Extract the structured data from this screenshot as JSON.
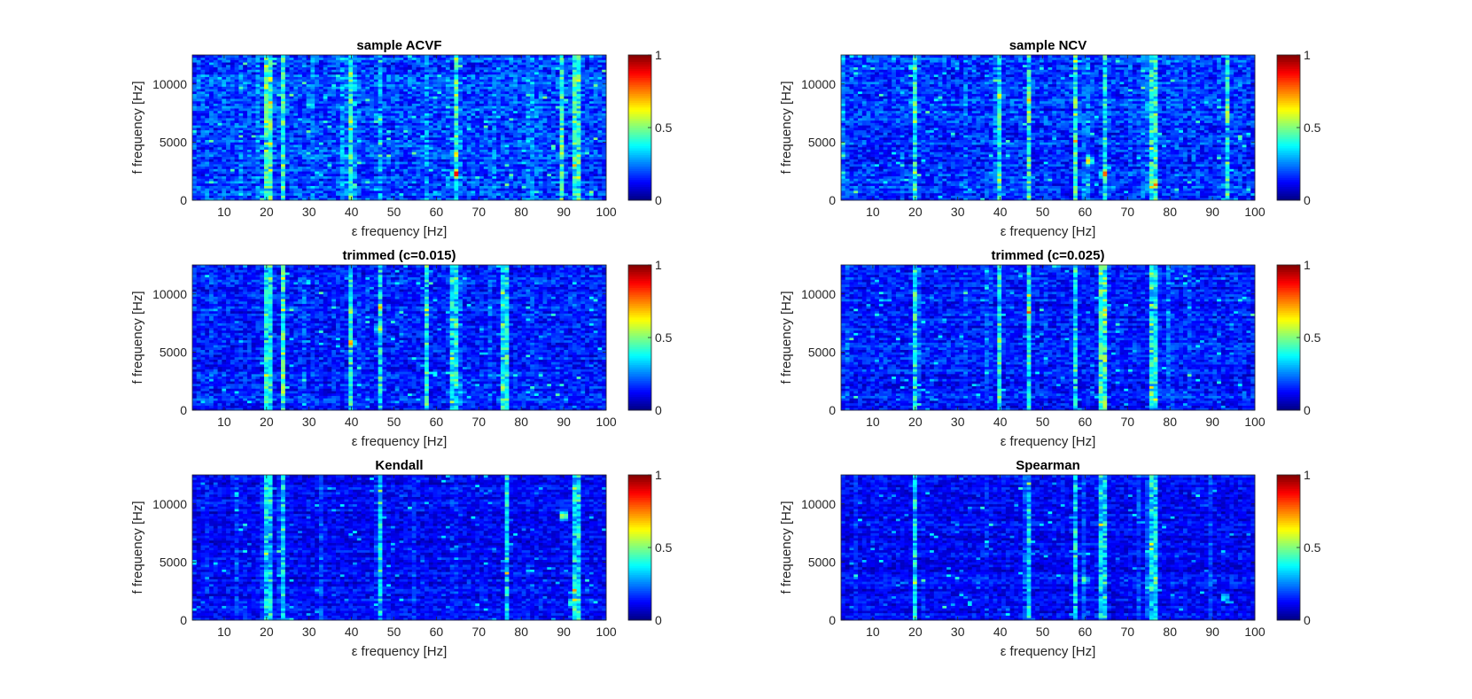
{
  "chart_data": [
    {
      "type": "heatmap",
      "title": "sample ACVF",
      "xlabel": "ε frequency [Hz]",
      "ylabel": "f frequency [Hz]",
      "xlim": [
        2.5,
        100
      ],
      "ylim": [
        0,
        12500
      ],
      "xticks": [
        10,
        20,
        30,
        40,
        50,
        60,
        70,
        80,
        90,
        100
      ],
      "yticks": [
        0,
        5000,
        10000
      ],
      "clim": [
        0,
        1
      ],
      "cticks": [
        0,
        0.5,
        1
      ],
      "colormap": "jet",
      "grid": false,
      "bright_columns_hz": [
        20.5,
        24,
        40,
        64.5,
        89.5,
        93
      ],
      "base_level": 0.22,
      "peaks": [
        {
          "x": 64.5,
          "y": 2300,
          "v": 0.95
        },
        {
          "x": 40,
          "y": 6800,
          "v": 0.62
        },
        {
          "x": 64.5,
          "y": 4000,
          "v": 0.7
        }
      ]
    },
    {
      "type": "heatmap",
      "title": "sample NCV",
      "xlabel": "ε frequency [Hz]",
      "ylabel": "f frequency [Hz]",
      "xlim": [
        2.5,
        100
      ],
      "ylim": [
        0,
        12500
      ],
      "xticks": [
        10,
        20,
        30,
        40,
        50,
        60,
        70,
        80,
        90,
        100
      ],
      "yticks": [
        0,
        5000,
        10000
      ],
      "clim": [
        0,
        1
      ],
      "cticks": [
        0,
        0.5,
        1
      ],
      "colormap": "jet",
      "grid": false,
      "bright_columns_hz": [
        20,
        40,
        47,
        57.5,
        64.5,
        76,
        93.5
      ],
      "base_level": 0.2,
      "peaks": [
        {
          "x": 64.5,
          "y": 2300,
          "v": 0.85
        },
        {
          "x": 61,
          "y": 3400,
          "v": 0.75
        },
        {
          "x": 40,
          "y": 9000,
          "v": 0.65
        }
      ]
    },
    {
      "type": "heatmap",
      "title": "trimmed (c=0.015)",
      "xlabel": "ε frequency [Hz]",
      "ylabel": "f frequency [Hz]",
      "xlim": [
        2.5,
        100
      ],
      "ylim": [
        0,
        12500
      ],
      "xticks": [
        10,
        20,
        30,
        40,
        50,
        60,
        70,
        80,
        90,
        100
      ],
      "yticks": [
        0,
        5000,
        10000
      ],
      "clim": [
        0,
        1
      ],
      "cticks": [
        0,
        0.5,
        1
      ],
      "colormap": "jet",
      "grid": false,
      "bright_columns_hz": [
        20.5,
        24,
        40,
        46.5,
        57.5,
        64,
        76
      ],
      "base_level": 0.18,
      "peaks": [
        {
          "x": 40,
          "y": 5800,
          "v": 0.78
        },
        {
          "x": 40,
          "y": 8500,
          "v": 0.6
        },
        {
          "x": 46.5,
          "y": 7000,
          "v": 0.65
        }
      ]
    },
    {
      "type": "heatmap",
      "title": "trimmed (c=0.025)",
      "xlabel": "ε frequency [Hz]",
      "ylabel": "f frequency [Hz]",
      "xlim": [
        2.5,
        100
      ],
      "ylim": [
        0,
        12500
      ],
      "xticks": [
        10,
        20,
        30,
        40,
        50,
        60,
        70,
        80,
        90,
        100
      ],
      "yticks": [
        0,
        5000,
        10000
      ],
      "clim": [
        0,
        1
      ],
      "cticks": [
        0,
        0.5,
        1
      ],
      "colormap": "jet",
      "grid": false,
      "bright_columns_hz": [
        20,
        40,
        46.5,
        57.5,
        64,
        76
      ],
      "base_level": 0.17,
      "peaks": [
        {
          "x": 40,
          "y": 6000,
          "v": 0.6
        }
      ]
    },
    {
      "type": "heatmap",
      "title": "Kendall",
      "xlabel": "ε frequency [Hz]",
      "ylabel": "f frequency [Hz]",
      "xlim": [
        2.5,
        100
      ],
      "ylim": [
        0,
        12500
      ],
      "xticks": [
        10,
        20,
        30,
        40,
        50,
        60,
        70,
        80,
        90,
        100
      ],
      "yticks": [
        0,
        5000,
        10000
      ],
      "clim": [
        0,
        1
      ],
      "cticks": [
        0,
        0.5,
        1
      ],
      "colormap": "jet",
      "grid": false,
      "bright_columns_hz": [
        20.5,
        24,
        46.5,
        76.5,
        93
      ],
      "base_level": 0.14,
      "peaks": [
        {
          "x": 90,
          "y": 9000,
          "v": 0.7
        },
        {
          "x": 92,
          "y": 1500,
          "v": 0.55
        }
      ]
    },
    {
      "type": "heatmap",
      "title": "Spearman",
      "xlabel": "ε frequency [Hz]",
      "ylabel": "f frequency [Hz]",
      "xlim": [
        2.5,
        100
      ],
      "ylim": [
        0,
        12500
      ],
      "xticks": [
        10,
        20,
        30,
        40,
        50,
        60,
        70,
        80,
        90,
        100
      ],
      "yticks": [
        0,
        5000,
        10000
      ],
      "clim": [
        0,
        1
      ],
      "cticks": [
        0,
        0.5,
        1
      ],
      "colormap": "jet",
      "grid": false,
      "bright_columns_hz": [
        20,
        46.5,
        57.5,
        64,
        76
      ],
      "base_level": 0.14,
      "peaks": [
        {
          "x": 60,
          "y": 3500,
          "v": 0.55
        },
        {
          "x": 93,
          "y": 2000,
          "v": 0.45
        }
      ]
    }
  ]
}
